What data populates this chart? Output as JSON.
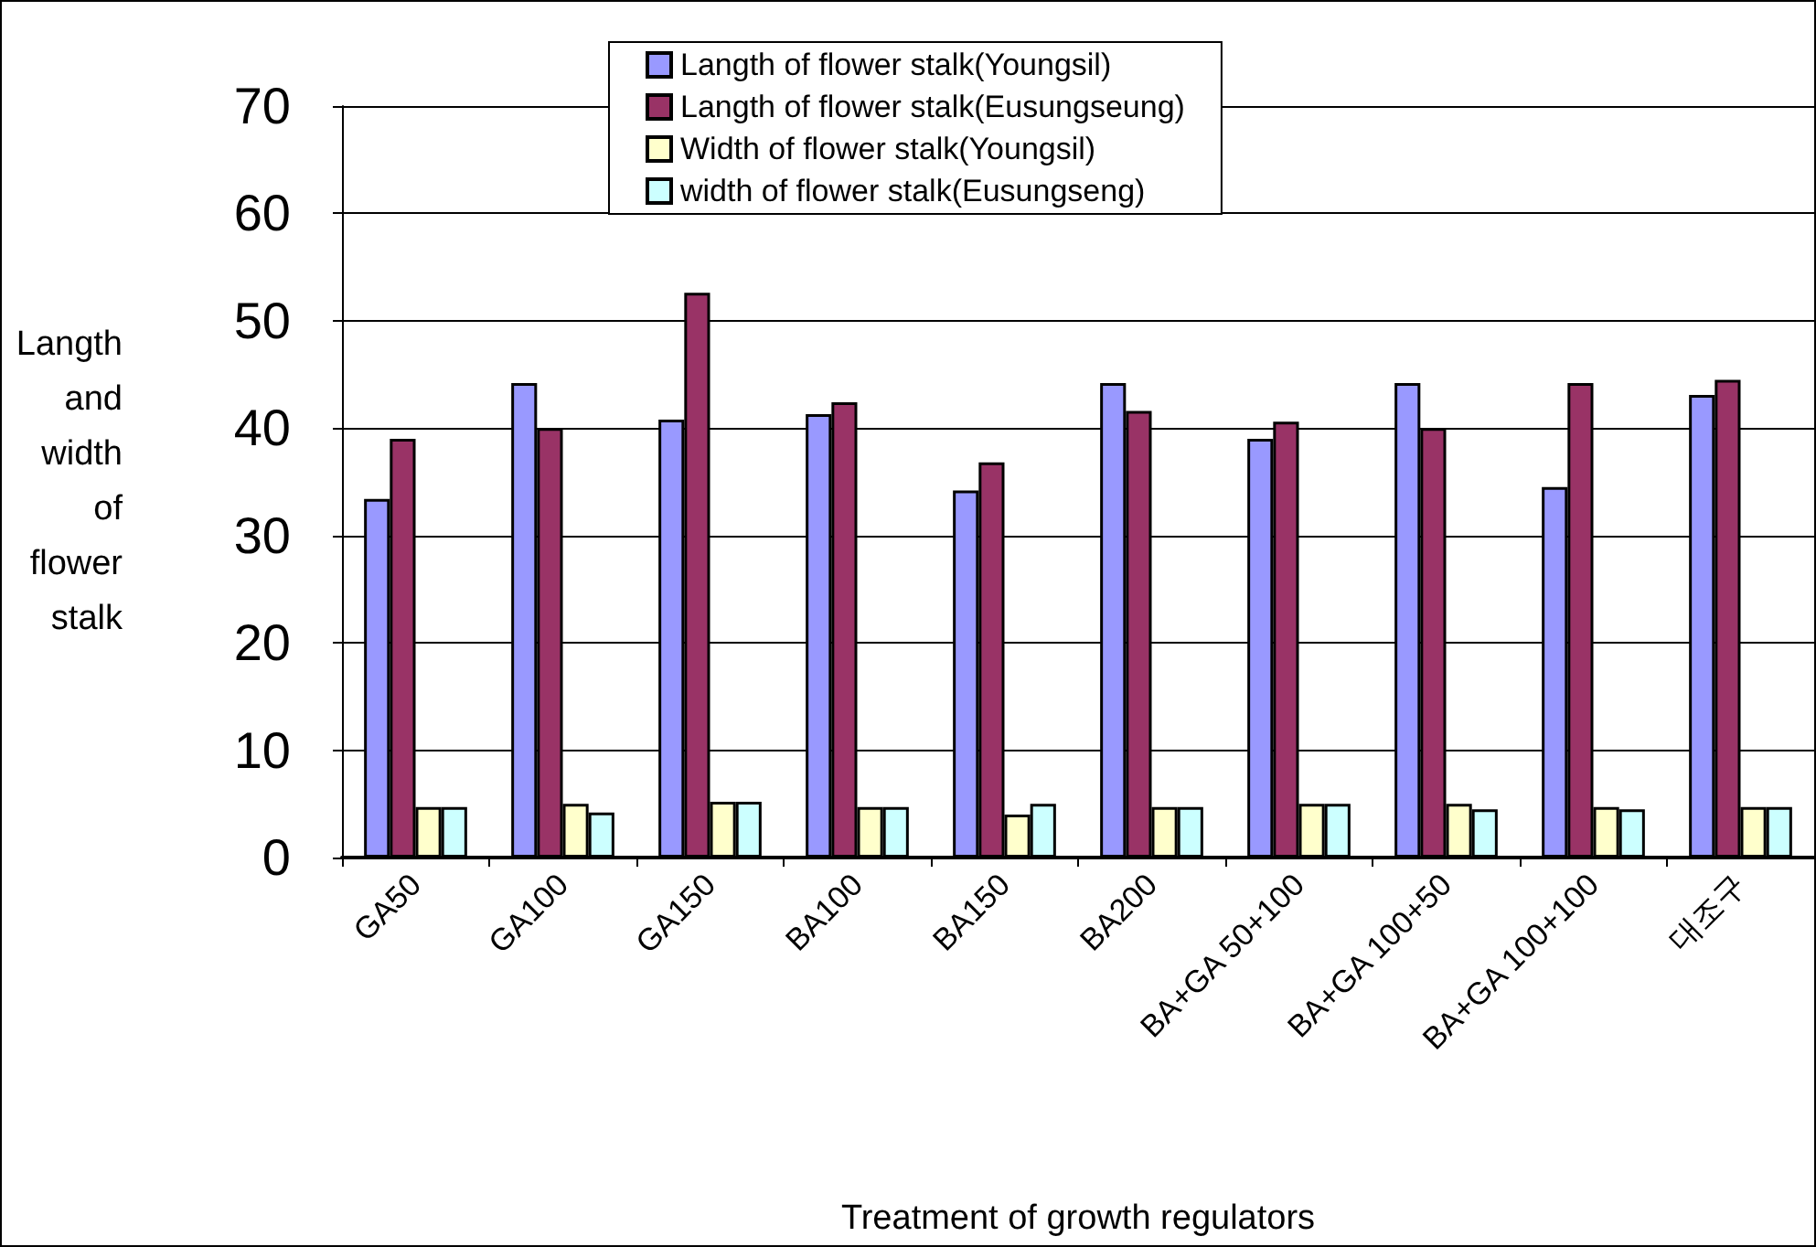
{
  "chart_data": {
    "type": "bar",
    "xlabel": "Treatment of growth regulators",
    "ylabel": "Langth and width of flower stalk",
    "categories": [
      "GA50",
      "GA100",
      "GA150",
      "BA100",
      "BA150",
      "BA200",
      "BA+GA 50+100",
      "BA+GA 100+50",
      "BA+GA 100+100",
      "대조구"
    ],
    "series": [
      {
        "name": "Langth of flower stalk(Youngsil)",
        "color": "#9999ff",
        "values": [
          33.4,
          44.2,
          40.8,
          41.3,
          34.2,
          44.2,
          39.0,
          44.2,
          34.5,
          43.1
        ]
      },
      {
        "name": "Langth of flower stalk(Eusungseung)",
        "color": "#993366",
        "values": [
          39.0,
          40.0,
          52.6,
          42.4,
          36.8,
          41.6,
          40.6,
          40.0,
          44.2,
          44.5
        ]
      },
      {
        "name": "Width of flower stalk(Youngsil)",
        "color": "#ffffcc",
        "values": [
          4.7,
          5.0,
          5.2,
          4.7,
          4.0,
          4.7,
          5.0,
          5.0,
          4.7,
          4.7
        ]
      },
      {
        "name": "width of flower stalk(Eusungseng)",
        "color": "#ccffff",
        "values": [
          4.7,
          4.2,
          5.2,
          4.7,
          5.0,
          4.7,
          5.0,
          4.5,
          4.5,
          4.7
        ]
      }
    ],
    "ylim": [
      0,
      70
    ],
    "yticks": [
      0,
      10,
      20,
      30,
      40,
      50,
      60,
      70
    ],
    "grid": "y",
    "legend": "top"
  }
}
